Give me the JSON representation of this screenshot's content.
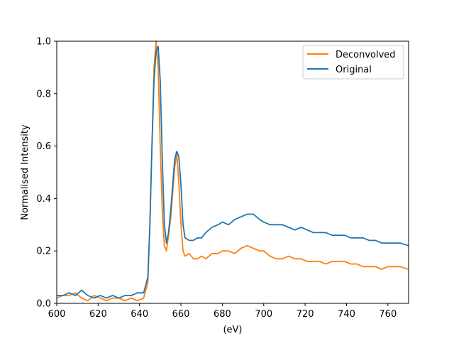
{
  "chart_data": {
    "type": "line",
    "xlabel": "(eV)",
    "ylabel": "Normalised Intensity",
    "xlim": [
      600,
      770
    ],
    "ylim": [
      0,
      1.0
    ],
    "xticks": [
      "600",
      "620",
      "640",
      "660",
      "680",
      "700",
      "720",
      "740",
      "760"
    ],
    "yticks": [
      "0.0",
      "0.2",
      "0.4",
      "0.6",
      "0.8",
      "1.0"
    ],
    "grid": false,
    "legend_position": "top-right",
    "series": [
      {
        "name": "Deconvolved",
        "color": "#ff7f0e",
        "x": [
          600,
          603,
          606,
          609,
          612,
          615,
          618,
          621,
          624,
          627,
          630,
          633,
          636,
          639,
          642,
          644,
          645,
          646,
          647,
          648,
          649,
          650,
          651,
          652,
          653,
          654,
          655,
          656,
          657,
          658,
          659,
          660,
          661,
          662,
          664,
          666,
          668,
          670,
          672,
          675,
          678,
          680,
          683,
          686,
          689,
          692,
          695,
          698,
          700,
          703,
          706,
          709,
          712,
          715,
          718,
          721,
          724,
          727,
          730,
          733,
          736,
          739,
          742,
          745,
          748,
          751,
          754,
          757,
          760,
          763,
          766,
          770
        ],
        "y": [
          0.02,
          0.03,
          0.03,
          0.04,
          0.02,
          0.01,
          0.03,
          0.02,
          0.01,
          0.02,
          0.02,
          0.01,
          0.02,
          0.01,
          0.02,
          0.08,
          0.3,
          0.6,
          0.9,
          1.0,
          0.9,
          0.6,
          0.35,
          0.22,
          0.2,
          0.26,
          0.32,
          0.42,
          0.52,
          0.57,
          0.46,
          0.3,
          0.2,
          0.18,
          0.19,
          0.17,
          0.17,
          0.18,
          0.17,
          0.19,
          0.19,
          0.2,
          0.2,
          0.19,
          0.21,
          0.22,
          0.21,
          0.2,
          0.2,
          0.18,
          0.17,
          0.17,
          0.18,
          0.17,
          0.17,
          0.16,
          0.16,
          0.16,
          0.15,
          0.16,
          0.16,
          0.16,
          0.15,
          0.15,
          0.14,
          0.14,
          0.14,
          0.13,
          0.14,
          0.14,
          0.14,
          0.13
        ]
      },
      {
        "name": "Original",
        "color": "#1f77b4",
        "x": [
          600,
          603,
          606,
          609,
          612,
          615,
          618,
          621,
          624,
          627,
          630,
          633,
          636,
          639,
          642,
          644,
          645,
          646,
          647,
          648,
          649,
          650,
          651,
          652,
          653,
          654,
          655,
          656,
          657,
          658,
          659,
          660,
          661,
          662,
          664,
          666,
          668,
          670,
          672,
          675,
          678,
          680,
          683,
          686,
          689,
          692,
          695,
          698,
          700,
          703,
          706,
          709,
          712,
          715,
          718,
          721,
          724,
          727,
          730,
          733,
          736,
          739,
          742,
          745,
          748,
          751,
          754,
          757,
          760,
          763,
          766,
          770
        ],
        "y": [
          0.03,
          0.03,
          0.04,
          0.03,
          0.05,
          0.03,
          0.02,
          0.03,
          0.02,
          0.03,
          0.02,
          0.03,
          0.03,
          0.04,
          0.04,
          0.1,
          0.3,
          0.6,
          0.85,
          0.96,
          0.98,
          0.85,
          0.55,
          0.3,
          0.23,
          0.27,
          0.35,
          0.45,
          0.55,
          0.58,
          0.56,
          0.45,
          0.3,
          0.25,
          0.24,
          0.24,
          0.25,
          0.25,
          0.27,
          0.29,
          0.3,
          0.31,
          0.3,
          0.32,
          0.33,
          0.34,
          0.34,
          0.32,
          0.31,
          0.3,
          0.3,
          0.3,
          0.29,
          0.28,
          0.29,
          0.28,
          0.27,
          0.27,
          0.27,
          0.26,
          0.26,
          0.26,
          0.25,
          0.25,
          0.25,
          0.24,
          0.24,
          0.23,
          0.23,
          0.23,
          0.23,
          0.22
        ]
      }
    ]
  }
}
